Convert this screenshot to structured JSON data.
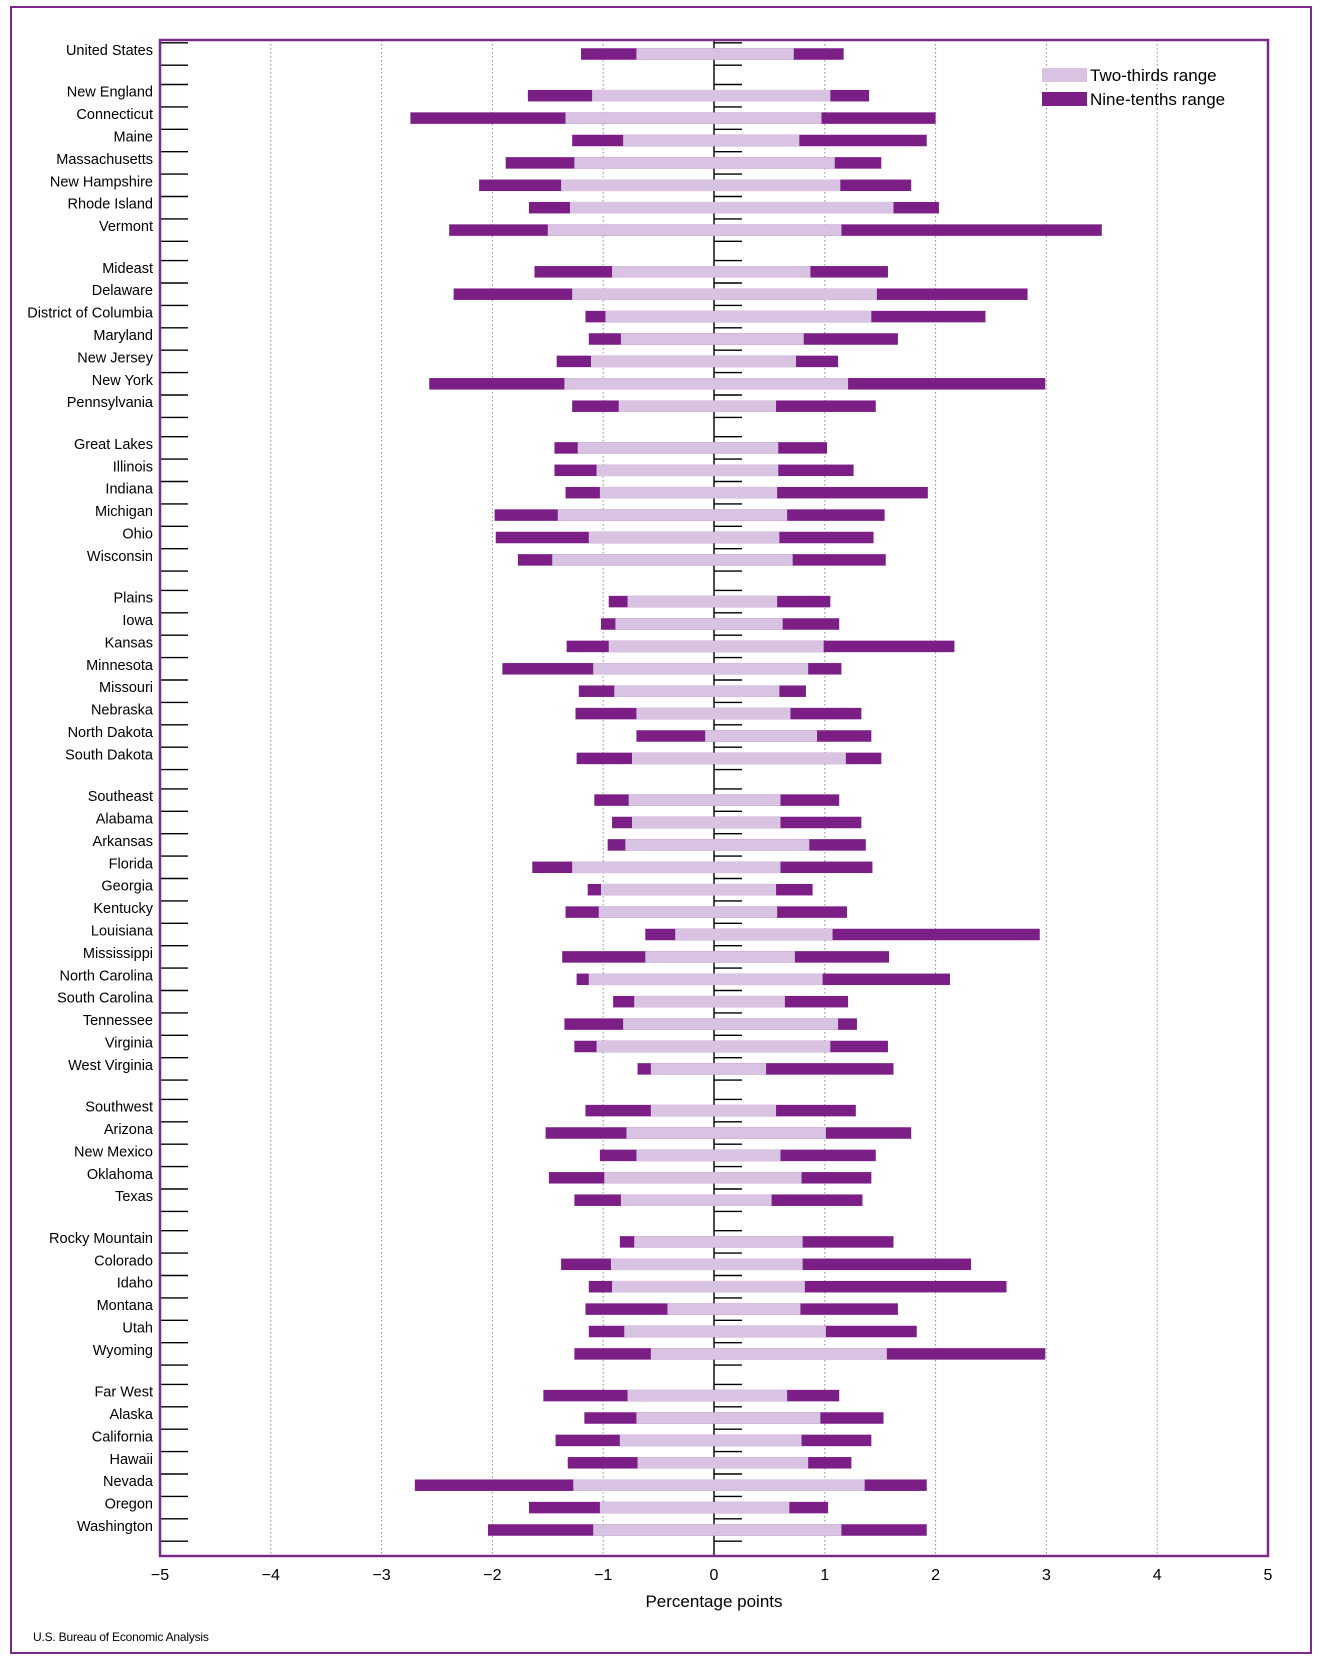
{
  "source": "U.S. Bureau of Economic Analysis",
  "chart_data": {
    "type": "bar",
    "orientation": "horizontal",
    "xlabel": "Percentage points",
    "xlim": [
      -5,
      5
    ],
    "xticks": [
      "−5",
      "−4",
      "−3",
      "−2",
      "−1",
      "0",
      "1",
      "2",
      "3",
      "4",
      "5"
    ],
    "grid": "vertical dotted",
    "legend_position": "top-right",
    "colors": {
      "two_thirds": "#d9c3e3",
      "nine_tenths": "#7b1f87",
      "frame": "#7b2a8a"
    },
    "series": [
      {
        "name": "Two-thirds range",
        "key": "t"
      },
      {
        "name": "Nine-tenths range",
        "key": "n"
      }
    ],
    "groups": [
      {
        "rows": [
          {
            "label": "United States",
            "n": [
              -1.2,
              1.17
            ],
            "t": [
              -0.7,
              0.72
            ]
          }
        ]
      },
      {
        "rows": [
          {
            "label": "New England",
            "n": [
              -1.68,
              1.4
            ],
            "t": [
              -1.1,
              1.05
            ]
          },
          {
            "label": "Connecticut",
            "n": [
              -2.74,
              2.0
            ],
            "t": [
              -1.34,
              0.97
            ]
          },
          {
            "label": "Maine",
            "n": [
              -1.28,
              1.92
            ],
            "t": [
              -0.82,
              0.77
            ]
          },
          {
            "label": "Massachusetts",
            "n": [
              -1.88,
              1.51
            ],
            "t": [
              -1.26,
              1.09
            ]
          },
          {
            "label": "New Hampshire",
            "n": [
              -2.12,
              1.78
            ],
            "t": [
              -1.38,
              1.14
            ]
          },
          {
            "label": "Rhode Island",
            "n": [
              -1.67,
              2.03
            ],
            "t": [
              -1.3,
              1.62
            ]
          },
          {
            "label": "Vermont",
            "n": [
              -2.39,
              3.5
            ],
            "t": [
              -1.5,
              1.15
            ]
          }
        ]
      },
      {
        "rows": [
          {
            "label": "Mideast",
            "n": [
              -1.62,
              1.57
            ],
            "t": [
              -0.92,
              0.87
            ]
          },
          {
            "label": "Delaware",
            "n": [
              -2.35,
              2.83
            ],
            "t": [
              -1.28,
              1.47
            ]
          },
          {
            "label": "District of Columbia",
            "n": [
              -1.16,
              2.45
            ],
            "t": [
              -0.98,
              1.42
            ]
          },
          {
            "label": "Maryland",
            "n": [
              -1.13,
              1.66
            ],
            "t": [
              -0.84,
              0.81
            ]
          },
          {
            "label": "New Jersey",
            "n": [
              -1.42,
              1.12
            ],
            "t": [
              -1.11,
              0.74
            ]
          },
          {
            "label": "New York",
            "n": [
              -2.57,
              2.99
            ],
            "t": [
              -1.35,
              1.21
            ]
          },
          {
            "label": "Pennsylvania",
            "n": [
              -1.28,
              1.46
            ],
            "t": [
              -0.86,
              0.56
            ]
          }
        ]
      },
      {
        "rows": [
          {
            "label": "Great Lakes",
            "n": [
              -1.44,
              1.02
            ],
            "t": [
              -1.23,
              0.58
            ]
          },
          {
            "label": "Illinois",
            "n": [
              -1.44,
              1.26
            ],
            "t": [
              -1.06,
              0.58
            ]
          },
          {
            "label": "Indiana",
            "n": [
              -1.34,
              1.93
            ],
            "t": [
              -1.03,
              0.57
            ]
          },
          {
            "label": "Michigan",
            "n": [
              -1.98,
              1.54
            ],
            "t": [
              -1.41,
              0.66
            ]
          },
          {
            "label": "Ohio",
            "n": [
              -1.97,
              1.44
            ],
            "t": [
              -1.13,
              0.59
            ]
          },
          {
            "label": "Wisconsin",
            "n": [
              -1.77,
              1.55
            ],
            "t": [
              -1.46,
              0.71
            ]
          }
        ]
      },
      {
        "rows": [
          {
            "label": "Plains",
            "n": [
              -0.95,
              1.05
            ],
            "t": [
              -0.78,
              0.57
            ]
          },
          {
            "label": "Iowa",
            "n": [
              -1.02,
              1.13
            ],
            "t": [
              -0.89,
              0.62
            ]
          },
          {
            "label": "Kansas",
            "n": [
              -1.33,
              2.17
            ],
            "t": [
              -0.95,
              0.99
            ]
          },
          {
            "label": "Minnesota",
            "n": [
              -1.91,
              1.15
            ],
            "t": [
              -1.09,
              0.85
            ]
          },
          {
            "label": "Missouri",
            "n": [
              -1.22,
              0.83
            ],
            "t": [
              -0.9,
              0.59
            ]
          },
          {
            "label": "Nebraska",
            "n": [
              -1.25,
              1.33
            ],
            "t": [
              -0.7,
              0.69
            ]
          },
          {
            "label": "North Dakota",
            "n": [
              -0.7,
              1.42
            ],
            "t": [
              -0.08,
              0.93
            ]
          },
          {
            "label": "South Dakota",
            "n": [
              -1.24,
              1.51
            ],
            "t": [
              -0.74,
              1.19
            ]
          }
        ]
      },
      {
        "rows": [
          {
            "label": "Southeast",
            "n": [
              -1.08,
              1.13
            ],
            "t": [
              -0.77,
              0.6
            ]
          },
          {
            "label": "Alabama",
            "n": [
              -0.92,
              1.33
            ],
            "t": [
              -0.74,
              0.6
            ]
          },
          {
            "label": "Arkansas",
            "n": [
              -0.96,
              1.37
            ],
            "t": [
              -0.8,
              0.86
            ]
          },
          {
            "label": "Florida",
            "n": [
              -1.64,
              1.43
            ],
            "t": [
              -1.28,
              0.6
            ]
          },
          {
            "label": "Georgia",
            "n": [
              -1.14,
              0.89
            ],
            "t": [
              -1.02,
              0.56
            ]
          },
          {
            "label": "Kentucky",
            "n": [
              -1.34,
              1.2
            ],
            "t": [
              -1.04,
              0.57
            ]
          },
          {
            "label": "Louisiana",
            "n": [
              -0.62,
              2.94
            ],
            "t": [
              -0.35,
              1.07
            ]
          },
          {
            "label": "Mississippi",
            "n": [
              -1.37,
              1.58
            ],
            "t": [
              -0.62,
              0.73
            ]
          },
          {
            "label": "North Carolina",
            "n": [
              -1.24,
              2.13
            ],
            "t": [
              -1.13,
              0.98
            ]
          },
          {
            "label": "South Carolina",
            "n": [
              -0.91,
              1.21
            ],
            "t": [
              -0.72,
              0.64
            ]
          },
          {
            "label": "Tennessee",
            "n": [
              -1.35,
              1.29
            ],
            "t": [
              -0.82,
              1.12
            ]
          },
          {
            "label": "Virginia",
            "n": [
              -1.26,
              1.57
            ],
            "t": [
              -1.06,
              1.05
            ]
          },
          {
            "label": "West Virginia",
            "n": [
              -0.69,
              1.62
            ],
            "t": [
              -0.57,
              0.47
            ]
          }
        ]
      },
      {
        "rows": [
          {
            "label": "Southwest",
            "n": [
              -1.16,
              1.28
            ],
            "t": [
              -0.57,
              0.56
            ]
          },
          {
            "label": "Arizona",
            "n": [
              -1.52,
              1.78
            ],
            "t": [
              -0.79,
              1.01
            ]
          },
          {
            "label": "New Mexico",
            "n": [
              -1.03,
              1.46
            ],
            "t": [
              -0.7,
              0.6
            ]
          },
          {
            "label": "Oklahoma",
            "n": [
              -1.49,
              1.42
            ],
            "t": [
              -0.99,
              0.79
            ]
          },
          {
            "label": "Texas",
            "n": [
              -1.26,
              1.34
            ],
            "t": [
              -0.84,
              0.52
            ]
          }
        ]
      },
      {
        "rows": [
          {
            "label": "Rocky Mountain",
            "n": [
              -0.85,
              1.62
            ],
            "t": [
              -0.72,
              0.8
            ]
          },
          {
            "label": "Colorado",
            "n": [
              -1.38,
              2.32
            ],
            "t": [
              -0.93,
              0.8
            ]
          },
          {
            "label": "Idaho",
            "n": [
              -1.13,
              2.64
            ],
            "t": [
              -0.92,
              0.82
            ]
          },
          {
            "label": "Montana",
            "n": [
              -1.16,
              1.66
            ],
            "t": [
              -0.42,
              0.78
            ]
          },
          {
            "label": "Utah",
            "n": [
              -1.13,
              1.83
            ],
            "t": [
              -0.81,
              1.01
            ]
          },
          {
            "label": "Wyoming",
            "n": [
              -1.26,
              2.99
            ],
            "t": [
              -0.57,
              1.56
            ]
          }
        ]
      },
      {
        "rows": [
          {
            "label": "Far West",
            "n": [
              -1.54,
              1.13
            ],
            "t": [
              -0.78,
              0.66
            ]
          },
          {
            "label": "Alaska",
            "n": [
              -1.17,
              1.53
            ],
            "t": [
              -0.7,
              0.96
            ]
          },
          {
            "label": "California",
            "n": [
              -1.43,
              1.42
            ],
            "t": [
              -0.85,
              0.79
            ]
          },
          {
            "label": "Hawaii",
            "n": [
              -1.32,
              1.24
            ],
            "t": [
              -0.69,
              0.85
            ]
          },
          {
            "label": "Nevada",
            "n": [
              -2.7,
              1.92
            ],
            "t": [
              -1.27,
              1.36
            ]
          },
          {
            "label": "Oregon",
            "n": [
              -1.67,
              1.03
            ],
            "t": [
              -1.03,
              0.68
            ]
          },
          {
            "label": "Washington",
            "n": [
              -2.04,
              1.92
            ],
            "t": [
              -1.09,
              1.15
            ]
          }
        ]
      }
    ]
  }
}
